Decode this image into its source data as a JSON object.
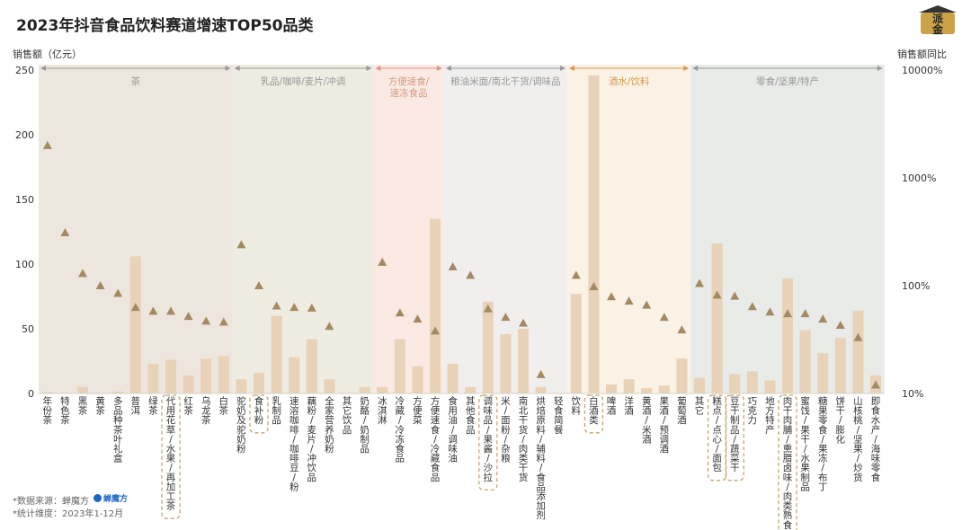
{
  "header": {
    "title": "2023年抖音食品饮料赛道增速TOP50品类",
    "logo_text_top": "派",
    "logo_text_bottom": "金"
  },
  "footer": {
    "source": "*数据来源：蝉魔方",
    "brand": "蝉魔方",
    "period": "*统计维度：2023年1-12月"
  },
  "colors": {
    "bar": "#e8d2b8",
    "marker": "#a38a63",
    "highlight_border": "#c9a46a"
  },
  "chart_data": {
    "type": "bar",
    "title": "2023年抖音食品饮料赛道增速TOP50品类",
    "ylabel": "销售额（亿元）",
    "y2label": "销售额同比",
    "ylim": [
      0,
      250
    ],
    "yticks": [
      "0",
      "50",
      "100",
      "150",
      "200",
      "250"
    ],
    "y2scale": "log",
    "y2lim": [
      10,
      10000
    ],
    "y2ticks": [
      "10%",
      "100%",
      "1000%",
      "10000%"
    ],
    "grid": false,
    "groups": [
      {
        "name": "茶",
        "bg": "#ede6de",
        "color": "#999",
        "from": 0,
        "to": 10
      },
      {
        "name": "乳品/咖啡/麦片/冲调",
        "bg": "#efece2",
        "color": "#999",
        "from": 11,
        "to": 18
      },
      {
        "name": "方便速食/\n速冻食品",
        "bg": "#fbeae4",
        "color": "#d69a80",
        "from": 19,
        "to": 22
      },
      {
        "name": "粮油米面/南北干货/调味品",
        "bg": "#f0efee",
        "color": "#999",
        "from": 23,
        "to": 29
      },
      {
        "name": "酒水/饮料",
        "bg": "#fbf2e6",
        "color": "#d59a50",
        "from": 30,
        "to": 36
      },
      {
        "name": "零食/坚果/特产",
        "bg": "#e8ebe8",
        "color": "#999",
        "from": 37,
        "to": 47
      }
    ],
    "categories": [
      "年份茶",
      "特色茶",
      "黑茶",
      "黄茶",
      "多品种茶叶礼盒",
      "普洱",
      "绿茶",
      "代用花草/水果/再加工茶",
      "红茶",
      "乌龙茶",
      "白茶",
      "驼奶及驼奶粉",
      "食补粉",
      "乳制品",
      "速溶咖啡/咖啡豆/粉",
      "藕粉/麦片/冲饮品",
      "全家营养奶粉",
      "其它饮品",
      "奶酪/奶制品",
      "冰淇淋",
      "冷藏/冷冻食品",
      "方便菜",
      "方便速食/冷藏食品",
      "食用油/调味油",
      "其他食品",
      "调味品/果酱/沙拉",
      "米/面粉/杂粮",
      "南北干货/肉类干货",
      "烘焙原料/辅料/食品添加剂",
      "轻食简餐",
      "饮料",
      "白酒类",
      "啤酒",
      "洋酒",
      "黄酒/米酒",
      "果酒/预调酒",
      "葡萄酒",
      "其它",
      "糕点/点心/面包",
      "豆干制品/蔬菜干",
      "巧克力",
      "地方特产",
      "肉干肉脯/熏腊卤味/肉类熟食",
      "蜜饯/果干/水果制品",
      "糖果零食/果冻/布丁",
      "饼干/膨化",
      "山核桃/坚果/炒货",
      "即食水产/海味零食"
    ],
    "series": [
      {
        "name": "销售额",
        "type": "bar",
        "values": [
          1,
          0.5,
          5,
          0.5,
          1.5,
          106,
          23,
          26,
          14,
          27,
          29,
          11,
          16,
          60,
          28,
          42,
          11,
          0.5,
          5,
          5,
          42,
          21,
          135,
          23,
          5,
          71,
          46,
          50,
          5,
          0.5,
          77,
          246,
          7,
          11,
          4,
          6,
          27,
          12,
          116,
          15,
          17,
          10,
          89,
          49,
          31,
          43,
          64,
          14
        ]
      },
      {
        "name": "销售额同比",
        "type": "scatter",
        "values": [
          2000,
          310,
          130,
          100,
          85,
          63,
          58,
          58,
          52,
          47,
          46,
          240,
          100,
          65,
          63,
          62,
          42,
          null,
          null,
          165,
          56,
          49,
          38,
          150,
          125,
          61,
          51,
          45,
          15,
          null,
          125,
          98,
          79,
          72,
          66,
          51,
          39,
          105,
          82,
          80,
          64,
          57,
          55,
          55,
          49,
          43,
          33,
          12
        ]
      }
    ],
    "highlighted": [
      "食补粉",
      "代用花草/水果/再加工茶",
      "调味品/果酱/沙拉",
      "白酒类",
      "糕点/点心/面包",
      "豆干制品/蔬菜干",
      "肉干肉脯/熏腊卤味/肉类熟食"
    ]
  }
}
